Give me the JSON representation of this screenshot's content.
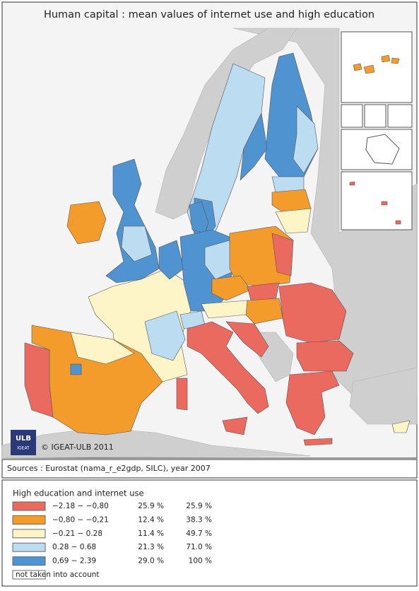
{
  "header": {
    "title": "Human capital : mean values of internet use and high education"
  },
  "logo": {
    "name": "ULB",
    "sub": "IGEAT"
  },
  "copyright": "© IGEAT-ULB 2011",
  "sources": "Sources : Eurostat (nama_r_e2gdp, SILC), year 2007",
  "legend": {
    "title": "High education and internet use",
    "classes": [
      {
        "range": "−2.18 − −0,80",
        "share": "25.9 %",
        "cumulative": "25.9 %",
        "color": "#ea6a5f"
      },
      {
        "range": "−0,80 − −0,21",
        "share": "12.4 %",
        "cumulative": "38.3 %",
        "color": "#f39c2b"
      },
      {
        "range": "−0.21 − 0.28",
        "share": "11.4 %",
        "cumulative": "49.7 %",
        "color": "#fdf4c8"
      },
      {
        "range": "0.28 − 0.68",
        "share": "21.3 %",
        "cumulative": "71.0 %",
        "color": "#bcdcf2"
      },
      {
        "range": "0,69 − 2.39",
        "share": "29.0 %",
        "cumulative": "100 %",
        "color": "#4f93d0"
      }
    ],
    "other": {
      "label": "not taken into account",
      "color": "#ffffff"
    }
  }
}
